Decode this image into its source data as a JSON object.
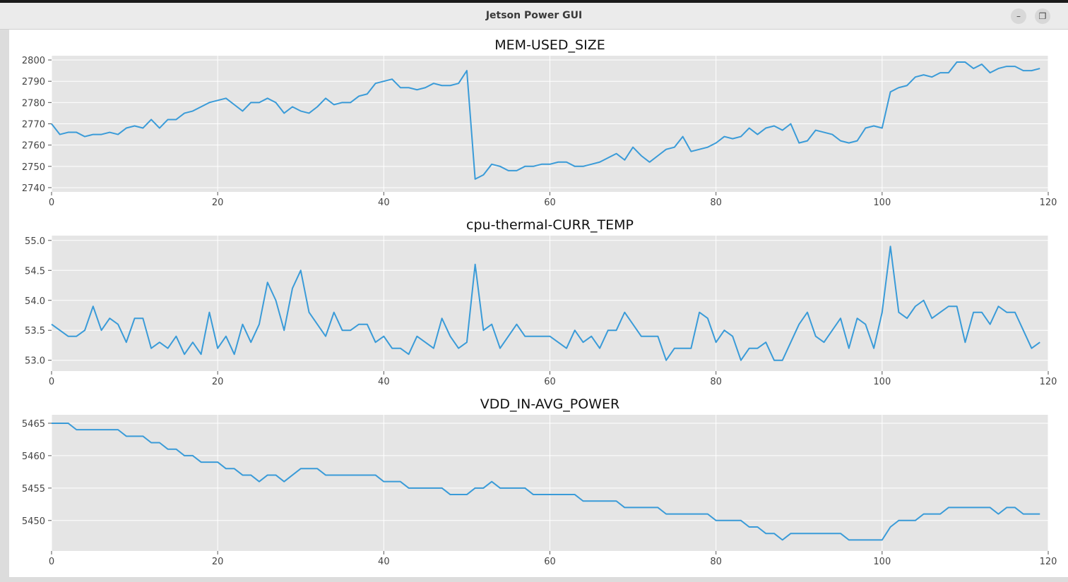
{
  "window": {
    "title": "Jetson Power GUI"
  },
  "chart_data": [
    {
      "type": "line",
      "title": "MEM-USED_SIZE",
      "xlim": [
        0,
        120
      ],
      "ylim": [
        2738,
        2802
      ],
      "xticks": [
        0,
        20,
        40,
        60,
        80,
        100,
        120
      ],
      "yticks": [
        2740,
        2750,
        2760,
        2770,
        2780,
        2790,
        2800
      ],
      "grid": true,
      "color": "#3a9bd8",
      "background": "#e5e5e5",
      "x_start": 0,
      "values": [
        2770,
        2765,
        2766,
        2766,
        2764,
        2765,
        2765,
        2766,
        2765,
        2768,
        2769,
        2768,
        2772,
        2768,
        2772,
        2772,
        2775,
        2776,
        2778,
        2780,
        2781,
        2782,
        2779,
        2776,
        2780,
        2780,
        2782,
        2780,
        2775,
        2778,
        2776,
        2775,
        2778,
        2782,
        2779,
        2780,
        2780,
        2783,
        2784,
        2789,
        2790,
        2791,
        2787,
        2787,
        2786,
        2787,
        2789,
        2788,
        2788,
        2789,
        2795,
        2744,
        2746,
        2751,
        2750,
        2748,
        2748,
        2750,
        2750,
        2751,
        2751,
        2752,
        2752,
        2750,
        2750,
        2751,
        2752,
        2754,
        2756,
        2753,
        2759,
        2755,
        2752,
        2755,
        2758,
        2759,
        2764,
        2757,
        2758,
        2759,
        2761,
        2764,
        2763,
        2764,
        2768,
        2765,
        2768,
        2769,
        2767,
        2770,
        2761,
        2762,
        2767,
        2766,
        2765,
        2762,
        2761,
        2762,
        2768,
        2769,
        2768,
        2785,
        2787,
        2788,
        2792,
        2793,
        2792,
        2794,
        2794,
        2799,
        2799,
        2796,
        2798,
        2794,
        2796,
        2797,
        2797,
        2795,
        2795,
        2796
      ]
    },
    {
      "type": "line",
      "title": "cpu-thermal-CURR_TEMP",
      "xlim": [
        0,
        120
      ],
      "ylim": [
        52.82,
        55.08
      ],
      "xticks": [
        0,
        20,
        40,
        60,
        80,
        100,
        120
      ],
      "yticks": [
        53.0,
        53.5,
        54.0,
        54.5,
        55.0
      ],
      "ytick_labels": [
        "53.0",
        "53.5",
        "54.0",
        "54.5",
        "55.0"
      ],
      "grid": true,
      "color": "#3a9bd8",
      "background": "#e5e5e5",
      "x_start": 0,
      "values": [
        53.6,
        53.5,
        53.4,
        53.4,
        53.5,
        53.9,
        53.5,
        53.7,
        53.6,
        53.3,
        53.7,
        53.7,
        53.2,
        53.3,
        53.2,
        53.4,
        53.1,
        53.3,
        53.1,
        53.8,
        53.2,
        53.4,
        53.1,
        53.6,
        53.3,
        53.6,
        54.3,
        54.0,
        53.5,
        54.2,
        54.5,
        53.8,
        53.6,
        53.4,
        53.8,
        53.5,
        53.5,
        53.6,
        53.6,
        53.3,
        53.4,
        53.2,
        53.2,
        53.1,
        53.4,
        53.3,
        53.2,
        53.7,
        53.4,
        53.2,
        53.3,
        54.6,
        53.5,
        53.6,
        53.2,
        53.4,
        53.6,
        53.4,
        53.4,
        53.4,
        53.4,
        53.3,
        53.2,
        53.5,
        53.3,
        53.4,
        53.2,
        53.5,
        53.5,
        53.8,
        53.6,
        53.4,
        53.4,
        53.4,
        53.0,
        53.2,
        53.2,
        53.2,
        53.8,
        53.7,
        53.3,
        53.5,
        53.4,
        53.0,
        53.2,
        53.2,
        53.3,
        53.0,
        53.0,
        53.3,
        53.6,
        53.8,
        53.4,
        53.3,
        53.5,
        53.7,
        53.2,
        53.7,
        53.6,
        53.2,
        53.8,
        54.9,
        53.8,
        53.7,
        53.9,
        54.0,
        53.7,
        53.8,
        53.9,
        53.9,
        53.3,
        53.8,
        53.8,
        53.6,
        53.9,
        53.8,
        53.8,
        53.5,
        53.2,
        53.3
      ]
    },
    {
      "type": "line",
      "title": "VDD_IN-AVG_POWER",
      "xlim": [
        0,
        120
      ],
      "ylim": [
        5445.3,
        5466.3
      ],
      "xticks": [
        0,
        20,
        40,
        60,
        80,
        100,
        120
      ],
      "yticks": [
        5450,
        5455,
        5460,
        5465
      ],
      "grid": true,
      "color": "#3a9bd8",
      "background": "#e5e5e5",
      "x_start": 0,
      "values": [
        5465,
        5465,
        5465,
        5464,
        5464,
        5464,
        5464,
        5464,
        5464,
        5463,
        5463,
        5463,
        5462,
        5462,
        5461,
        5461,
        5460,
        5460,
        5459,
        5459,
        5459,
        5458,
        5458,
        5457,
        5457,
        5456,
        5457,
        5457,
        5456,
        5457,
        5458,
        5458,
        5458,
        5457,
        5457,
        5457,
        5457,
        5457,
        5457,
        5457,
        5456,
        5456,
        5456,
        5455,
        5455,
        5455,
        5455,
        5455,
        5454,
        5454,
        5454,
        5455,
        5455,
        5456,
        5455,
        5455,
        5455,
        5455,
        5454,
        5454,
        5454,
        5454,
        5454,
        5454,
        5453,
        5453,
        5453,
        5453,
        5453,
        5452,
        5452,
        5452,
        5452,
        5452,
        5451,
        5451,
        5451,
        5451,
        5451,
        5451,
        5450,
        5450,
        5450,
        5450,
        5449,
        5449,
        5448,
        5448,
        5447,
        5448,
        5448,
        5448,
        5448,
        5448,
        5448,
        5448,
        5447,
        5447,
        5447,
        5447,
        5447,
        5449,
        5450,
        5450,
        5450,
        5451,
        5451,
        5451,
        5452,
        5452,
        5452,
        5452,
        5452,
        5452,
        5451,
        5452,
        5452,
        5451,
        5451,
        5451
      ]
    }
  ]
}
